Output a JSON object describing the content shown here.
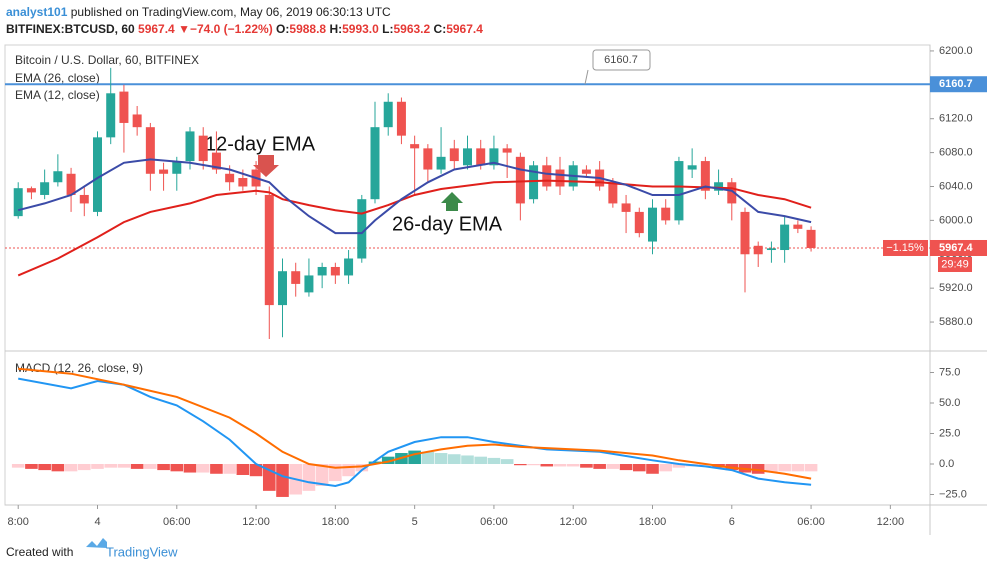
{
  "header": {
    "author": "analyst101",
    "published": "published on TradingView.com, May 06, 2019 06:30:13 UTC",
    "symbol": "BITFINEX:BTCUSD, 60",
    "price": "5967.4",
    "arrow": "▼",
    "change": "−74.0 (−1.22%)",
    "o_label": "O:",
    "open": "5988.8",
    "h_label": "H:",
    "high": "5993.0",
    "l_label": "L:",
    "low": "5963.2",
    "c_label": "C:",
    "close": "5967.4"
  },
  "chart_data": [
    {
      "type": "candlestick",
      "title": "Bitcoin / U.S. Dollar, 60, BITFINEX",
      "x": [
        0,
        1,
        2,
        3,
        4,
        5,
        6,
        7,
        8,
        9,
        10,
        11,
        12,
        13,
        14,
        15,
        16,
        17,
        18,
        19,
        20,
        21,
        22,
        23,
        24,
        25,
        26,
        27,
        28,
        29,
        30,
        31,
        32,
        33,
        34,
        35,
        36,
        37,
        38,
        39,
        40,
        41,
        42,
        43,
        44,
        45,
        46,
        47,
        48,
        49,
        50,
        51,
        52,
        53,
        54,
        55,
        56,
        57,
        58,
        59,
        60
      ],
      "open": [
        6005,
        6038,
        6030,
        6045,
        6055,
        6030,
        6010,
        6098,
        6152,
        6125,
        6110,
        6060,
        6055,
        6070,
        6100,
        6080,
        6055,
        6050,
        6060,
        6030,
        5900,
        5940,
        5915,
        5935,
        5945,
        5935,
        5955,
        6025,
        6110,
        6140,
        6090,
        6085,
        6060,
        6085,
        6065,
        6085,
        6065,
        6085,
        6075,
        6025,
        6065,
        6060,
        6040,
        6060,
        6060,
        6045,
        6020,
        6010,
        5975,
        6015,
        6000,
        6060,
        6070,
        6035,
        6045,
        6010,
        5970,
        5965,
        5965,
        5995,
        5988.8
      ],
      "high": [
        6045,
        6040,
        6060,
        6078,
        6062,
        6040,
        6105,
        6180,
        6160,
        6135,
        6115,
        6068,
        6075,
        6110,
        6110,
        6105,
        6065,
        6060,
        6070,
        6040,
        5955,
        5950,
        5955,
        5950,
        5950,
        5965,
        6030,
        6140,
        6150,
        6145,
        6100,
        6090,
        6110,
        6095,
        6100,
        6095,
        6100,
        6090,
        6080,
        6070,
        6075,
        6075,
        6070,
        6065,
        6070,
        6050,
        6030,
        6015,
        6025,
        6025,
        6075,
        6085,
        6075,
        6060,
        6050,
        6015,
        5975,
        5975,
        6005,
        6000,
        5993
      ],
      "low": [
        6002,
        6025,
        6025,
        6040,
        6010,
        6005,
        6005,
        6090,
        6080,
        6100,
        6035,
        6035,
        6035,
        6060,
        6060,
        6055,
        6035,
        6035,
        6030,
        5860,
        5862,
        5910,
        5910,
        5920,
        5925,
        5925,
        5950,
        6020,
        6100,
        6090,
        6030,
        6045,
        6055,
        6060,
        6060,
        6060,
        6060,
        6050,
        6000,
        6020,
        6035,
        6030,
        6035,
        6050,
        6035,
        6015,
        5985,
        5980,
        5960,
        5995,
        5995,
        6050,
        6025,
        6030,
        6000,
        5915,
        5945,
        5950,
        5950,
        5985,
        5963.2
      ],
      "close": [
        6038,
        6033,
        6045,
        6058,
        6030,
        6020,
        6098,
        6150,
        6115,
        6110,
        6055,
        6055,
        6070,
        6105,
        6070,
        6060,
        6045,
        6040,
        6040,
        5900,
        5940,
        5925,
        5935,
        5945,
        5935,
        5955,
        6025,
        6110,
        6140,
        6100,
        6085,
        6060,
        6075,
        6070,
        6085,
        6065,
        6085,
        6080,
        6020,
        6065,
        6040,
        6040,
        6065,
        6055,
        6040,
        6020,
        6010,
        5985,
        6015,
        6000,
        6070,
        6065,
        6035,
        6045,
        6020,
        5960,
        5960,
        5967,
        5995,
        5990,
        5967.4
      ],
      "up_color": "#26a69a",
      "down_color": "#ef5350",
      "series": [
        {
          "name": "EMA (26, close)",
          "color": "#e0201b",
          "x": [
            0,
            3,
            6,
            8,
            10,
            13,
            15,
            18,
            19,
            20,
            22,
            24,
            26,
            28,
            30,
            32,
            36,
            40,
            44,
            48,
            50,
            54,
            56,
            58,
            60
          ],
          "values": [
            5935,
            5955,
            5980,
            5998,
            6010,
            6020,
            6030,
            6035,
            6033,
            6025,
            6018,
            6012,
            6008,
            6018,
            6030,
            6037,
            6045,
            6047,
            6045,
            6040,
            6040,
            6038,
            6030,
            6025,
            6015
          ]
        },
        {
          "name": "EMA (12, close)",
          "color": "#3b4ba8",
          "x": [
            0,
            2,
            4,
            6,
            8,
            10,
            13,
            16,
            18,
            19,
            20,
            22,
            24,
            26,
            27,
            29,
            31,
            33,
            36,
            38,
            40,
            44,
            46,
            48,
            50,
            52,
            54,
            56,
            58,
            60
          ],
          "values": [
            6012,
            6020,
            6030,
            6050,
            6068,
            6072,
            6068,
            6060,
            6050,
            6045,
            6030,
            6005,
            5985,
            5985,
            6000,
            6025,
            6045,
            6060,
            6068,
            6060,
            6055,
            6050,
            6042,
            6030,
            6030,
            6040,
            6035,
            6010,
            6005,
            5998
          ]
        }
      ],
      "xlim": [
        -1,
        69
      ],
      "ylim": [
        5847,
        6207
      ],
      "yticks": [
        {
          "value": 6200,
          "label": "6200.0"
        },
        {
          "value": 6160,
          "label": "6160.0"
        },
        {
          "value": 6120,
          "label": "6120.0"
        },
        {
          "value": 6080,
          "label": "6080.0"
        },
        {
          "value": 6040,
          "label": "6040.0"
        },
        {
          "value": 6000,
          "label": "6000.0"
        },
        {
          "value": 5960,
          "label": "5960.0"
        },
        {
          "value": 5920,
          "label": "5920.0"
        },
        {
          "value": 5880,
          "label": "5880.0"
        }
      ],
      "hline": {
        "value": 6160.7,
        "color": "#4a90d9"
      },
      "last": {
        "value": 5967.4,
        "change_label": "−1.15%",
        "countdown": "29:49",
        "color": "#ef5350"
      },
      "annotations": [
        "12-day EMA",
        "26-day EMA"
      ]
    },
    {
      "type": "macd",
      "title": "MACD (12, 26, close, 9)",
      "histogram": {
        "x": [
          0,
          1,
          2,
          3,
          4,
          5,
          6,
          7,
          8,
          9,
          10,
          11,
          12,
          13,
          14,
          15,
          16,
          17,
          18,
          19,
          20,
          21,
          22,
          23,
          24,
          25,
          26,
          27,
          28,
          29,
          30,
          31,
          32,
          33,
          34,
          35,
          36,
          37,
          38,
          39,
          40,
          41,
          42,
          43,
          44,
          45,
          46,
          47,
          48,
          49,
          50,
          51,
          52,
          53,
          54,
          55,
          56,
          57,
          58,
          59,
          60
        ],
        "values": [
          -3,
          -4,
          -5,
          -6,
          -6,
          -5,
          -4,
          -3,
          -3,
          -4,
          -4,
          -5,
          -6,
          -7,
          -7,
          -8,
          -8,
          -9,
          -10,
          -22,
          -27,
          -25,
          -22,
          -18,
          -14,
          -10,
          -6,
          2,
          6,
          9,
          11,
          10,
          9,
          8,
          7,
          6,
          5,
          4,
          -1,
          -1,
          -2,
          -2,
          -2,
          -3,
          -4,
          -4,
          -5,
          -6,
          -8,
          -6,
          -3,
          -2,
          -1,
          -3,
          -5,
          -7,
          -8,
          -7,
          -6,
          -6,
          -6
        ],
        "colors": {
          "rise_above": "#26a69a",
          "fall_above": "#b2dfdb",
          "fall_below": "#ef5350",
          "rise_below": "#ffcdd2"
        }
      },
      "series": [
        {
          "color": "#2196f3",
          "x": [
            0,
            4,
            6,
            8,
            10,
            12,
            14,
            16,
            18,
            20,
            22,
            24,
            25,
            26,
            28,
            30,
            32,
            34,
            36,
            38,
            40,
            44,
            48,
            50,
            52,
            54,
            56,
            58,
            60
          ],
          "values": [
            70,
            62,
            68,
            65,
            55,
            48,
            35,
            20,
            0,
            -10,
            -15,
            -18,
            -15,
            -5,
            10,
            18,
            22,
            22,
            18,
            15,
            12,
            10,
            3,
            0,
            -2,
            -5,
            -12,
            -15,
            -17
          ]
        },
        {
          "color": "#ff6d00",
          "x": [
            0,
            4,
            8,
            12,
            16,
            18,
            20,
            22,
            24,
            26,
            28,
            30,
            32,
            34,
            36,
            38,
            40,
            44,
            48,
            50,
            52,
            54,
            56,
            58,
            60
          ],
          "values": [
            78,
            74,
            65,
            55,
            38,
            25,
            10,
            0,
            -3,
            -2,
            2,
            8,
            12,
            15,
            16,
            14,
            13,
            11,
            7,
            3,
            0,
            -3,
            -5,
            -8,
            -12
          ]
        }
      ],
      "xlim": [
        -1,
        69
      ],
      "ylim": [
        -33.6,
        91.8
      ],
      "yticks": [
        {
          "value": 75,
          "label": "75.0"
        },
        {
          "value": 50,
          "label": "50.0"
        },
        {
          "value": 25,
          "label": "25.0"
        },
        {
          "value": 0,
          "label": "0.0"
        },
        {
          "value": -25,
          "label": "−25.0"
        }
      ],
      "xticks": [
        {
          "value": 0,
          "label": "8:00"
        },
        {
          "value": 6,
          "label": "4"
        },
        {
          "value": 12,
          "label": "06:00"
        },
        {
          "value": 18,
          "label": "12:00"
        },
        {
          "value": 24,
          "label": "18:00"
        },
        {
          "value": 30,
          "label": "5"
        },
        {
          "value": 36,
          "label": "06:00"
        },
        {
          "value": 42,
          "label": "12:00"
        },
        {
          "value": 48,
          "label": "18:00"
        },
        {
          "value": 54,
          "label": "6"
        },
        {
          "value": 60,
          "label": "06:00"
        },
        {
          "value": 66,
          "label": "12:00"
        }
      ]
    }
  ],
  "footer": {
    "created": "Created with",
    "brand": "TradingView"
  }
}
